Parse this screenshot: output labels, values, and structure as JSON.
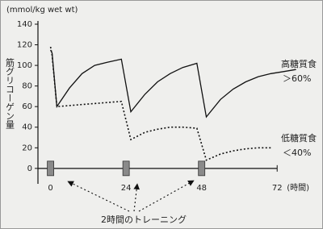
{
  "chart_data": {
    "type": "line",
    "y_unit": "(mmol/kg wet wt)",
    "y_label": "筋グリコーゲン量",
    "x_label": "(時間)",
    "x": [
      0,
      0.5,
      2,
      6,
      10,
      14,
      18,
      22.5,
      25.5,
      30,
      34,
      38,
      42,
      46.5,
      49.5,
      54,
      58,
      62,
      66,
      70,
      74,
      78
    ],
    "series": [
      {
        "name": "高糖質食",
        "note": "＞60%",
        "color": "#111111",
        "dash": "solid",
        "values": [
          115,
          112,
          60,
          78,
          92,
          100,
          103,
          106,
          55,
          72,
          84,
          92,
          98,
          102,
          50,
          67,
          77,
          84,
          89,
          92,
          94,
          96
        ]
      },
      {
        "name": "低糖質食",
        "note": "＜40%",
        "color": "#111111",
        "dash": "dotted",
        "values": [
          118,
          110,
          60,
          61,
          62,
          63,
          64,
          65,
          28,
          35,
          38,
          40,
          40,
          39,
          8,
          14,
          17,
          19,
          20,
          20,
          null,
          null
        ]
      }
    ],
    "training": {
      "label": "2時間のトレーニング",
      "x": [
        0,
        24,
        48
      ]
    },
    "xlim": [
      -4,
      84
    ],
    "xticks": [
      0,
      24,
      48,
      72
    ],
    "ylim": [
      -15,
      140
    ],
    "yticks": [
      0,
      20,
      40,
      60,
      80,
      100,
      120,
      140
    ]
  }
}
